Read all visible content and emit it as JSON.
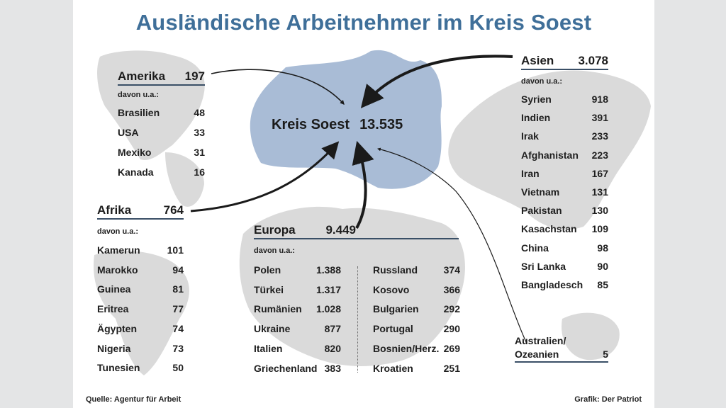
{
  "title": "Ausländische Arbeitnehmer im Kreis Soest",
  "center": {
    "label": "Kreis Soest",
    "value": "13.535"
  },
  "subheading": "davon u.a.:",
  "colors": {
    "title": "#3f6f99",
    "region": "#a9bcd6",
    "map": "#d9d9d9",
    "text": "#1c1c1c"
  },
  "amerika": {
    "label": "Amerika",
    "value": "197",
    "rows": [
      {
        "name": "Brasilien",
        "value": "48"
      },
      {
        "name": "USA",
        "value": "33"
      },
      {
        "name": "Mexiko",
        "value": "31"
      },
      {
        "name": "Kanada",
        "value": "16"
      }
    ]
  },
  "afrika": {
    "label": "Afrika",
    "value": "764",
    "rows": [
      {
        "name": "Kamerun",
        "value": "101"
      },
      {
        "name": "Marokko",
        "value": "94"
      },
      {
        "name": "Guinea",
        "value": "81"
      },
      {
        "name": "Eritrea",
        "value": "77"
      },
      {
        "name": "Ägypten",
        "value": "74"
      },
      {
        "name": "Nigeria",
        "value": "73"
      },
      {
        "name": "Tunesien",
        "value": "50"
      }
    ]
  },
  "europa": {
    "label": "Europa",
    "value": "9.449",
    "rows_left": [
      {
        "name": "Polen",
        "value": "1.388"
      },
      {
        "name": "Türkei",
        "value": "1.317"
      },
      {
        "name": "Rumänien",
        "value": "1.028"
      },
      {
        "name": "Ukraine",
        "value": "877"
      },
      {
        "name": "Italien",
        "value": "820"
      },
      {
        "name": "Griechenland",
        "value": "383"
      }
    ],
    "rows_right": [
      {
        "name": "Russland",
        "value": "374"
      },
      {
        "name": "Kosovo",
        "value": "366"
      },
      {
        "name": "Bulgarien",
        "value": "292"
      },
      {
        "name": "Portugal",
        "value": "290"
      },
      {
        "name": "Bosnien/Herz.",
        "value": "269"
      },
      {
        "name": "Kroatien",
        "value": "251"
      }
    ]
  },
  "asien": {
    "label": "Asien",
    "value": "3.078",
    "rows": [
      {
        "name": "Syrien",
        "value": "918"
      },
      {
        "name": "Indien",
        "value": "391"
      },
      {
        "name": "Irak",
        "value": "233"
      },
      {
        "name": "Afghanistan",
        "value": "223"
      },
      {
        "name": "Iran",
        "value": "167"
      },
      {
        "name": "Vietnam",
        "value": "131"
      },
      {
        "name": "Pakistan",
        "value": "130"
      },
      {
        "name": "Kasachstan",
        "value": "109"
      },
      {
        "name": "China",
        "value": "98"
      },
      {
        "name": "Sri Lanka",
        "value": "90"
      },
      {
        "name": "Bangladesch",
        "value": "85"
      }
    ]
  },
  "ozeanien": {
    "label_line1": "Australien/",
    "label_line2": "Ozeanien",
    "value": "5"
  },
  "footer": {
    "source": "Quelle: Agentur für Arbeit",
    "credit": "Grafik: Der Patriot"
  }
}
